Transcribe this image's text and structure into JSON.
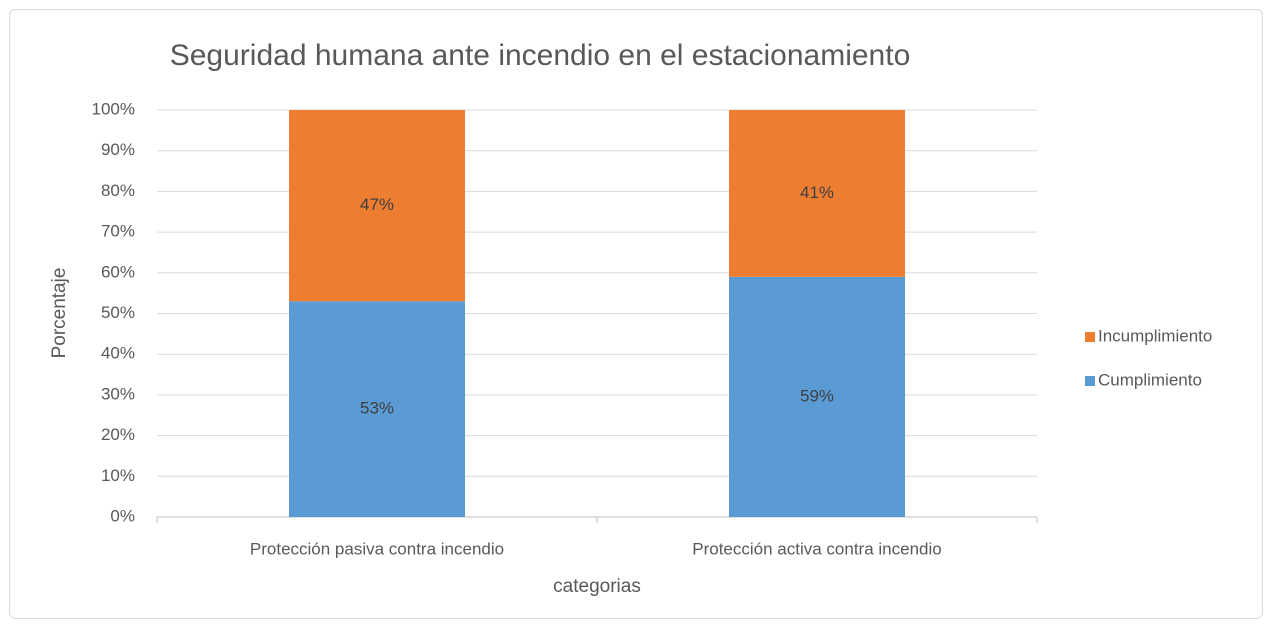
{
  "chart_data": {
    "type": "stacked_bar",
    "title": "Seguridad humana ante incendio en el estacionamiento",
    "x_label": "categorias",
    "y_label": "Porcentaje",
    "categories": [
      "Protección pasiva contra incendio",
      "Protección activa  contra incendio"
    ],
    "series": [
      {
        "name": "Cumplimiento",
        "color": "#5b9bd5",
        "values": [
          53,
          59
        ],
        "value_labels": [
          "53%",
          "59%"
        ]
      },
      {
        "name": "Incumplimiento",
        "color": "#ed7d31",
        "values": [
          47,
          41
        ],
        "value_labels": [
          "47%",
          "41%"
        ]
      }
    ],
    "ylim": [
      0,
      100
    ],
    "yticks": [
      {
        "value": 0,
        "label": "0%"
      },
      {
        "value": 10,
        "label": "10%"
      },
      {
        "value": 20,
        "label": "20%"
      },
      {
        "value": 30,
        "label": "30%"
      },
      {
        "value": 40,
        "label": "40%"
      },
      {
        "value": 50,
        "label": "50%"
      },
      {
        "value": 60,
        "label": "60%"
      },
      {
        "value": 70,
        "label": "70%"
      },
      {
        "value": 80,
        "label": "80%"
      },
      {
        "value": 90,
        "label": "90%"
      },
      {
        "value": 100,
        "label": "100%"
      }
    ],
    "grid": true,
    "legend": "right"
  }
}
